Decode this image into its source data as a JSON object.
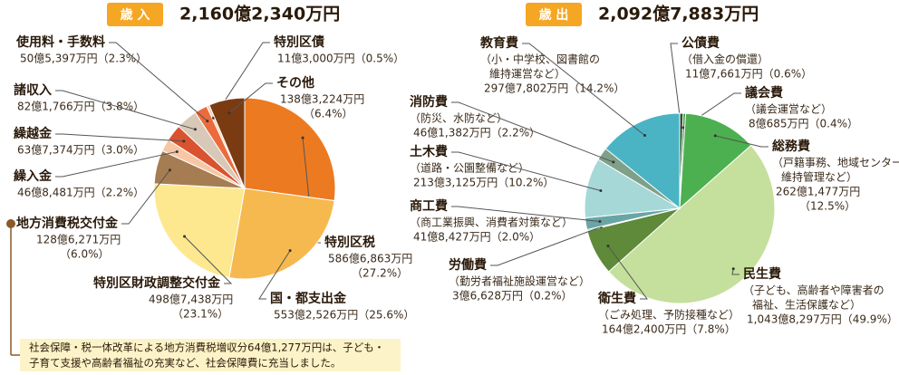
{
  "chart_data": [
    {
      "type": "pie",
      "badge": "歳 入",
      "total": "2,160億2,340万円",
      "categories": [
        "特別区税",
        "国・都支出金",
        "特別区財政調整交付金",
        "地方消費税交付金",
        "繰入金",
        "繰越金",
        "諸収入",
        "使用料・手数料",
        "特別区債",
        "その他"
      ],
      "amounts": [
        "586億6,863万円",
        "553億2,526万円",
        "498億7,438万円",
        "128億6,271万円",
        "46億8,481万円",
        "63億7,374万円",
        "82億1,766万円",
        "50億5,397万円",
        "11億3,000万円",
        "138億3,224万円"
      ],
      "values": [
        27.2,
        25.6,
        23.1,
        6,
        2.2,
        3,
        3.8,
        2.3,
        0.5,
        6.4
      ],
      "value_labels": [
        "（27.2%）",
        "（25.6%）",
        "（23.1%）",
        "（6.0%）",
        "（2.2%）",
        "（3.0%）",
        "（3.8%）",
        "（2.3%）",
        "（0.5%）",
        "（6.4%）"
      ],
      "colors": [
        "#ec7a21",
        "#f6b94f",
        "#fde88f",
        "#a67c52",
        "#f7c7a5",
        "#d9532f",
        "#d8c8b8",
        "#ec6b3c",
        "#f5d0b0",
        "#7a3b12"
      ]
    },
    {
      "type": "pie",
      "badge": "歳 出",
      "total": "2,092億7,883万円",
      "categories": [
        "公債費",
        "議会費",
        "総務費",
        "民生費",
        "衛生費",
        "労働費",
        "商工費",
        "土木費",
        "消防費",
        "教育費"
      ],
      "descriptions": [
        [
          "（借入金の償還）"
        ],
        [
          "（議会運営など）"
        ],
        [
          "（戸籍事務、地域センター",
          "維持管理など）"
        ],
        [
          "（子ども、高齢者や障害者の",
          "福祉、生活保護など）"
        ],
        [
          "（ごみ処理、予防接種など）"
        ],
        [
          "（勤労者福祉施設運営など）"
        ],
        [
          "（商工業振興、消費者対策など）"
        ],
        [
          "（道路・公園整備など）"
        ],
        [
          "（防災、水防など）"
        ],
        [
          "（小・中学校、図書館の",
          "維持運営など）"
        ]
      ],
      "amounts": [
        "11億7,661万円",
        "8億685万円",
        "262億1,477万円",
        "1,043億8,297万円",
        "164億2,400万円",
        "3億6,628万円",
        "41億8,427万円",
        "213億3,125万円",
        "46億1,382万円",
        "297億7,802万円"
      ],
      "values": [
        0.6,
        0.4,
        12.5,
        49.9,
        7.8,
        0.2,
        2,
        10.2,
        2.2,
        14.2
      ],
      "value_labels": [
        "（0.6%）",
        "（0.4%）",
        "（12.5%）",
        "（49.9%）",
        "（7.8%）",
        "（0.2%）",
        "（2.0%）",
        "（10.2%）",
        "（2.2%）",
        "（14.2%）"
      ],
      "colors": [
        "#1e5a2c",
        "#3a8a3c",
        "#4cb050",
        "#c5df9c",
        "#5e8a3a",
        "#2d6a6a",
        "#6aa5a5",
        "#a6d8d8",
        "#7fa088",
        "#4ab4c4"
      ]
    }
  ],
  "note": [
    "社会保障・税一体改革による地方消費税増収分64億1,277万円は、子ども・",
    "子育て支援や高齢者福祉の充実など、社会保障費に充当しました。"
  ]
}
